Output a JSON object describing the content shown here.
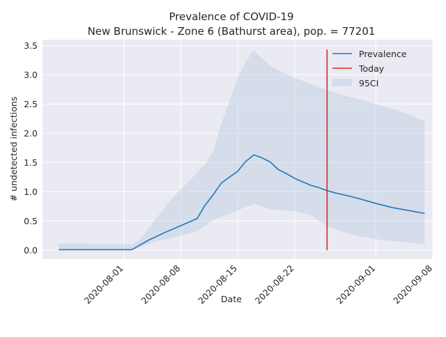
{
  "colors": {
    "background": "#ffffff",
    "plot_background": "#EAEAF2",
    "grid": "#ffffff",
    "prevalence": "#1f77b4",
    "today": "#d62728",
    "ci_fill": "#B0C4DE",
    "text": "#262626"
  },
  "chart_data": {
    "type": "line",
    "title": "Prevalence of COVID-19",
    "subtitle": "New Brunswick - Zone 6 (Bathurst area), pop. = 77201",
    "xlabel": "Date",
    "ylabel": "# undetected infections",
    "x_is_date": true,
    "xlim": [
      "2020-07-22",
      "2020-09-08"
    ],
    "ylim": [
      -0.15,
      3.6
    ],
    "x_ticks": [
      "2020-08-01",
      "2020-08-08",
      "2020-08-15",
      "2020-08-22",
      "2020-09-01",
      "2020-09-08"
    ],
    "y_ticks": [
      0.0,
      0.5,
      1.0,
      1.5,
      2.0,
      2.5,
      3.0,
      3.5
    ],
    "y_tick_labels": [
      "0.0",
      "0.5",
      "1.0",
      "1.5",
      "2.0",
      "2.5",
      "3.0",
      "3.5"
    ],
    "grid": true,
    "legend_position": "top-right",
    "legend": [
      "Prevalence",
      "Today",
      "95CI"
    ],
    "series": [
      {
        "name": "Prevalence",
        "kind": "line",
        "x": [
          "2020-07-24",
          "2020-08-02",
          "2020-08-04",
          "2020-08-06",
          "2020-08-08",
          "2020-08-10",
          "2020-08-11",
          "2020-08-12",
          "2020-08-13",
          "2020-08-14",
          "2020-08-15",
          "2020-08-16",
          "2020-08-17",
          "2020-08-18",
          "2020-08-19",
          "2020-08-20",
          "2020-08-21",
          "2020-08-22",
          "2020-08-23",
          "2020-08-24",
          "2020-08-25",
          "2020-08-26",
          "2020-08-27",
          "2020-08-28",
          "2020-08-30",
          "2020-09-01",
          "2020-09-03",
          "2020-09-05",
          "2020-09-07"
        ],
        "y": [
          0.01,
          0.01,
          0.17,
          0.3,
          0.42,
          0.54,
          0.77,
          0.95,
          1.15,
          1.25,
          1.35,
          1.52,
          1.63,
          1.58,
          1.51,
          1.38,
          1.31,
          1.23,
          1.17,
          1.11,
          1.07,
          1.02,
          0.98,
          0.95,
          0.88,
          0.8,
          0.73,
          0.68,
          0.63
        ]
      },
      {
        "name": "Today",
        "kind": "vline",
        "x": "2020-08-26",
        "y_range": [
          0.0,
          3.43
        ]
      },
      {
        "name": "95CI",
        "kind": "band",
        "x": [
          "2020-07-24",
          "2020-08-02",
          "2020-08-03",
          "2020-08-05",
          "2020-08-07",
          "2020-08-09",
          "2020-08-10",
          "2020-08-11",
          "2020-08-12",
          "2020-08-13",
          "2020-08-14",
          "2020-08-15",
          "2020-08-16",
          "2020-08-17",
          "2020-08-18",
          "2020-08-19",
          "2020-08-20",
          "2020-08-22",
          "2020-08-24",
          "2020-08-26",
          "2020-08-28",
          "2020-08-30",
          "2020-09-01",
          "2020-09-03",
          "2020-09-05",
          "2020-09-07"
        ],
        "lower": [
          0.0,
          0.0,
          0.05,
          0.15,
          0.22,
          0.28,
          0.32,
          0.42,
          0.52,
          0.57,
          0.62,
          0.68,
          0.74,
          0.79,
          0.75,
          0.7,
          0.69,
          0.67,
          0.6,
          0.41,
          0.31,
          0.24,
          0.19,
          0.16,
          0.13,
          0.1
        ],
        "upper": [
          0.12,
          0.1,
          0.18,
          0.55,
          0.9,
          1.18,
          1.32,
          1.47,
          1.7,
          2.17,
          2.55,
          2.95,
          3.22,
          3.42,
          3.28,
          3.16,
          3.08,
          2.95,
          2.84,
          2.74,
          2.65,
          2.58,
          2.5,
          2.42,
          2.33,
          2.2
        ]
      }
    ]
  }
}
